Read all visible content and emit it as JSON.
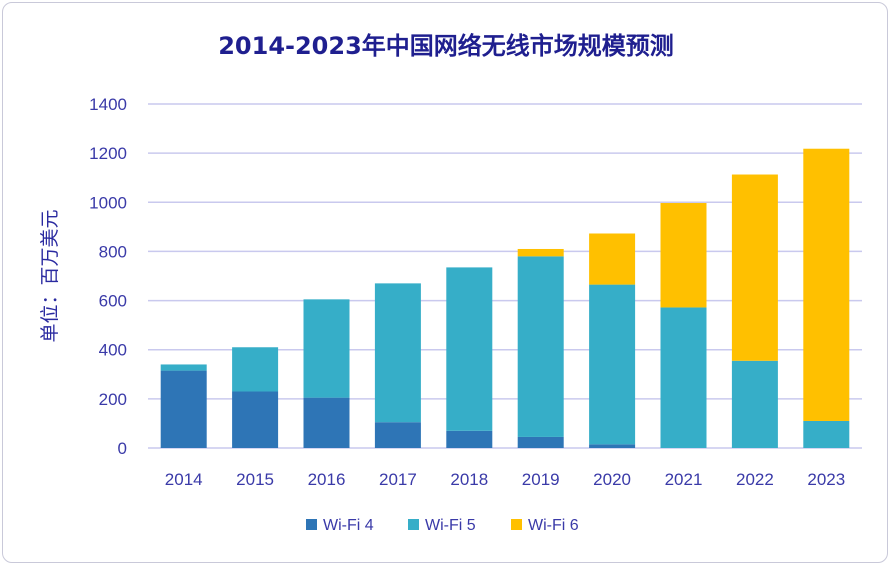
{
  "chart_data": {
    "type": "bar",
    "stacked": true,
    "title": "2014-2023年中国网络无线市场规模预测",
    "ylabel": "单位：百万美元",
    "xlabel": "",
    "ylim": [
      0,
      1400
    ],
    "yticks": [
      0,
      200,
      400,
      600,
      800,
      1000,
      1200,
      1400
    ],
    "grid": true,
    "legend_position": "bottom",
    "categories": [
      "2014",
      "2015",
      "2016",
      "2017",
      "2018",
      "2019",
      "2020",
      "2021",
      "2022",
      "2023"
    ],
    "series": [
      {
        "name": "Wi-Fi 4",
        "color": "#2e75b6",
        "values": [
          315,
          230,
          205,
          105,
          70,
          45,
          15,
          0,
          0,
          0
        ]
      },
      {
        "name": "Wi-Fi 5",
        "color": "#36aec8",
        "values": [
          25,
          180,
          400,
          565,
          665,
          735,
          650,
          572,
          355,
          110
        ]
      },
      {
        "name": "Wi-Fi 6",
        "color": "#ffc000",
        "values": [
          0,
          0,
          0,
          0,
          0,
          30,
          208,
          425,
          758,
          1108
        ]
      }
    ]
  }
}
